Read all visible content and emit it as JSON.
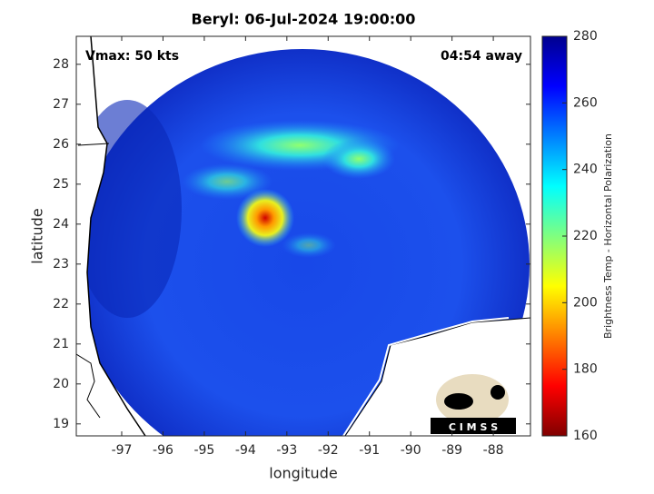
{
  "chart_data": {
    "type": "map",
    "title": "Beryl: 06-Jul-2024 19:00:00",
    "annotations": [
      "Vmax: 50 kts",
      "04:54 away"
    ],
    "xlabel": "longitude",
    "ylabel": "latitude",
    "xlim": [
      -98.1,
      -87.1
    ],
    "ylim": [
      18.7,
      28.7
    ],
    "xticks": [
      -97,
      -96,
      -95,
      -94,
      -93,
      -92,
      -91,
      -90,
      -89,
      -88
    ],
    "yticks": [
      19,
      20,
      21,
      22,
      23,
      24,
      25,
      26,
      27,
      28
    ],
    "colorbar": {
      "label": "Brightness Temp - Horizontal Polarization",
      "lim": [
        160,
        280
      ],
      "ticks": [
        160,
        180,
        200,
        220,
        240,
        260,
        280
      ]
    },
    "logo": "C I M S S"
  }
}
